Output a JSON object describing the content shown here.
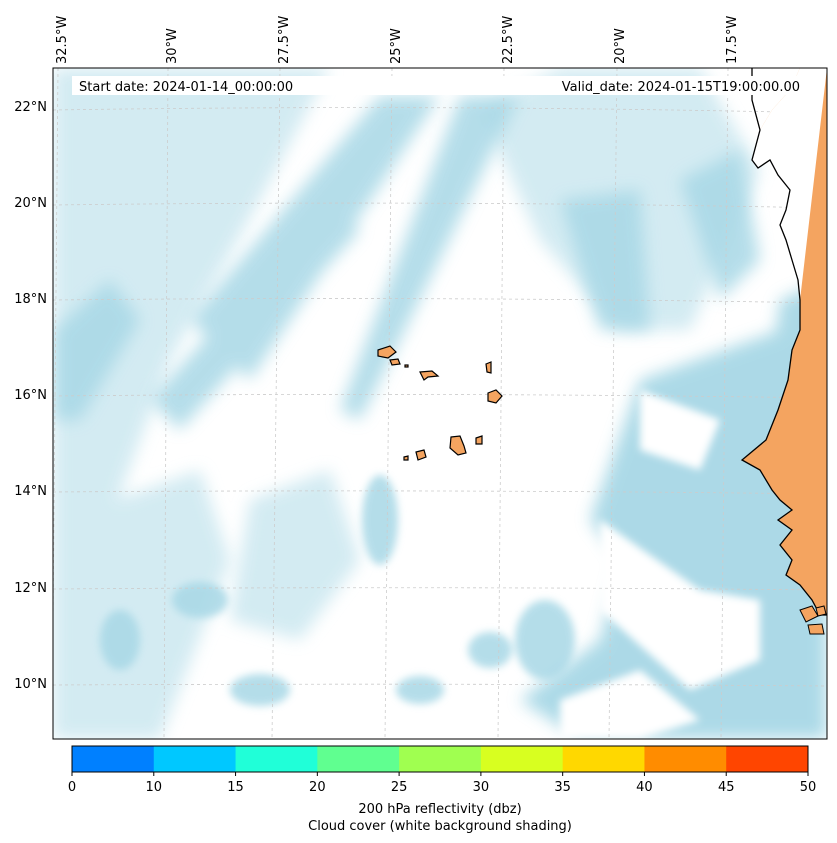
{
  "map": {
    "start_date_text": "Start date: 2024-01-14_00:00:00",
    "valid_date_text": "Valid_date: 2024-01-15T19:00:00.00",
    "lon_labels": [
      "32.5°W",
      "30°W",
      "27.5°W",
      "25°W",
      "22.5°W",
      "20°W",
      "17.5°W"
    ],
    "lat_labels": [
      "22°N",
      "20°N",
      "18°N",
      "16°N",
      "14°N",
      "12°N",
      "10°N"
    ],
    "colors": {
      "cloud_cover": "#a8d8e6",
      "land": "#f4a460",
      "coastline": "#000000",
      "grid": "#bbbbbb"
    }
  },
  "colorbar": {
    "colors": [
      "#0080ff",
      "#00c8ff",
      "#20ffd8",
      "#60ff90",
      "#a0ff50",
      "#d8ff20",
      "#ffd800",
      "#ff8c00",
      "#ff4500"
    ],
    "ticks": [
      "0",
      "10",
      "15",
      "20",
      "25",
      "30",
      "35",
      "40",
      "45",
      "50"
    ],
    "label_line1": "200 hPa reflectivity (dbz)",
    "label_line2": "Cloud cover (white background shading)"
  }
}
